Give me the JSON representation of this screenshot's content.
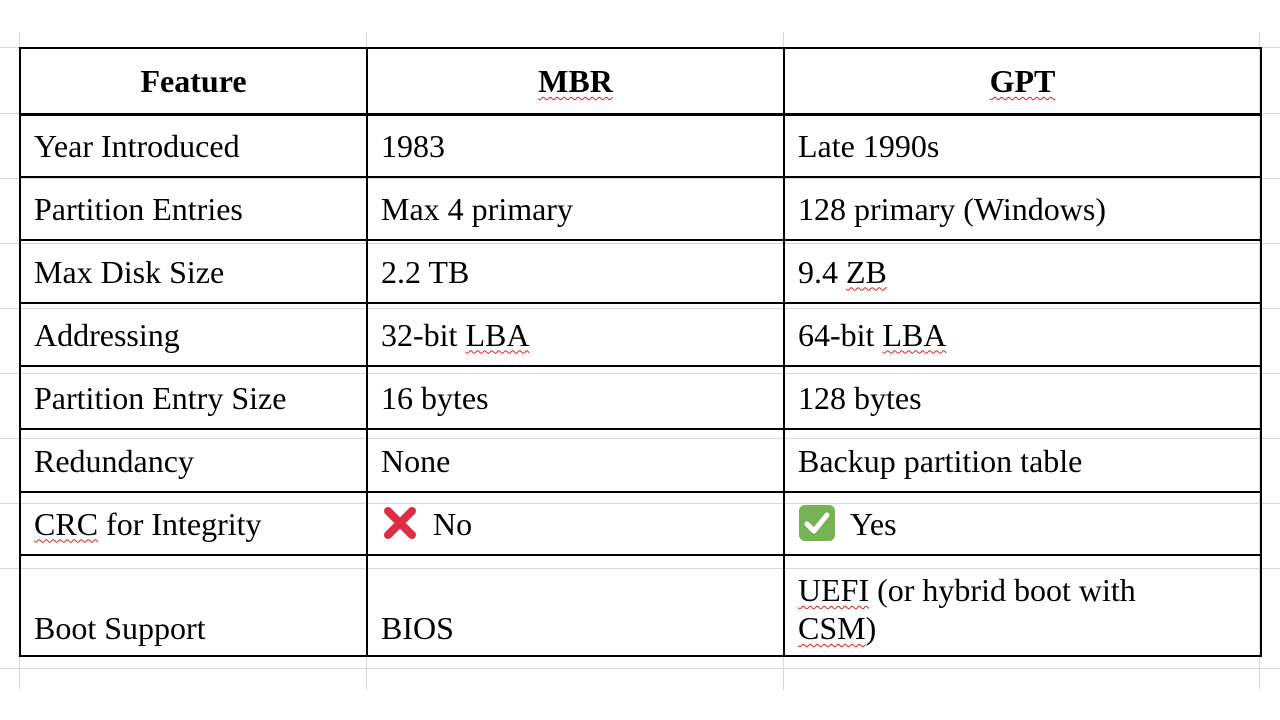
{
  "table": {
    "headers": [
      "Feature",
      "MBR",
      "GPT"
    ],
    "rows": [
      {
        "feature": "Year Introduced",
        "mbr": "1983",
        "gpt": "Late 1990s"
      },
      {
        "feature": "Partition Entries",
        "mbr": "Max 4 primary",
        "gpt": "128 primary (Windows)"
      },
      {
        "feature": "Max Disk Size",
        "mbr": "2.2 TB",
        "gpt_num": "9.4",
        "gpt_unit": "ZB"
      },
      {
        "feature": "Addressing",
        "mbr_prefix": "32-bit",
        "mbr_term": "LBA",
        "gpt_prefix": "64-bit",
        "gpt_term": "LBA"
      },
      {
        "feature": "Partition Entry Size",
        "mbr": "16 bytes",
        "gpt": "128 bytes"
      },
      {
        "feature": "Redundancy",
        "mbr": "None",
        "gpt": "Backup partition table"
      },
      {
        "feature_term": "CRC",
        "feature_rest": "for Integrity",
        "mbr_icon": "cross-mark-icon",
        "mbr": "No",
        "gpt_icon": "check-mark-icon",
        "gpt": "Yes"
      },
      {
        "feature": "Boot Support",
        "mbr": "BIOS",
        "gpt_term1": "UEFI",
        "gpt_mid": "(or hybrid boot with",
        "gpt_term2": "CSM",
        "gpt_end": ")"
      }
    ]
  },
  "colors": {
    "cross": "#dd2e44",
    "check": "#77b255",
    "spell_underline": "#e02020",
    "border": "#000000",
    "gridline": "#d9d9d9"
  }
}
